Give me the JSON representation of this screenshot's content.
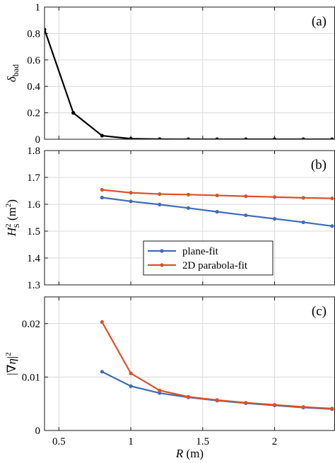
{
  "x_axis": {
    "label": "R (m)",
    "range": [
      0.4,
      2.42
    ],
    "ticks": [
      0.5,
      1,
      1.5,
      2
    ],
    "tick_labels": [
      "0.5",
      "1",
      "1.5",
      "2"
    ]
  },
  "chart_data": [
    {
      "type": "line",
      "panel_label": "(a)",
      "ylabel": "δbad",
      "ylabel_html": {
        "main": "δ",
        "sub": "bad"
      },
      "ylim": [
        0,
        1
      ],
      "yticks": [
        0,
        0.2,
        0.4,
        0.6,
        0.8,
        1
      ],
      "ytick_labels": [
        "0",
        "0.2",
        "0.4",
        "0.6",
        "0.8",
        "1"
      ],
      "grid": true,
      "series": [
        {
          "color": "#000000",
          "x": [
            0.4,
            0.6,
            0.8,
            1.0,
            1.2,
            1.4,
            1.6,
            1.8,
            2.0,
            2.2,
            2.4
          ],
          "y": [
            0.83,
            0.2,
            0.027,
            0.004,
            0.001,
            0.0,
            0.0,
            0.0,
            0.0,
            0.0,
            0.0
          ]
        }
      ]
    },
    {
      "type": "line",
      "panel_label": "(b)",
      "ylabel": "HS2 (m2)",
      "ylim": [
        1.3,
        1.8
      ],
      "yticks": [
        1.3,
        1.4,
        1.5,
        1.6,
        1.7,
        1.8
      ],
      "ytick_labels": [
        "1.3",
        "1.4",
        "1.5",
        "1.6",
        "1.7",
        "1.8"
      ],
      "grid": true,
      "legend": "bottom-center",
      "series": [
        {
          "name": "plane-fit",
          "color": "#3f6db5",
          "x": [
            0.8,
            1.0,
            1.2,
            1.4,
            1.6,
            1.8,
            2.0,
            2.2,
            2.4
          ],
          "y": [
            1.625,
            1.611,
            1.599,
            1.586,
            1.572,
            1.559,
            1.546,
            1.533,
            1.519
          ]
        },
        {
          "name": "2D parabola-fit",
          "color": "#d9522a",
          "x": [
            0.8,
            1.0,
            1.2,
            1.4,
            1.6,
            1.8,
            2.0,
            2.2,
            2.4
          ],
          "y": [
            1.654,
            1.643,
            1.638,
            1.636,
            1.633,
            1.63,
            1.627,
            1.624,
            1.622
          ]
        }
      ]
    },
    {
      "type": "line",
      "panel_label": "(c)",
      "ylabel": "|∇η|2",
      "ylim": [
        0,
        0.025
      ],
      "yticks": [
        0,
        0.01,
        0.02
      ],
      "ytick_labels": [
        "0",
        "0.01",
        "0.02"
      ],
      "grid": true,
      "series": [
        {
          "color": "#3f6db5",
          "x": [
            0.8,
            1.0,
            1.2,
            1.4,
            1.6,
            1.8,
            2.0,
            2.2,
            2.4
          ],
          "y": [
            0.011,
            0.0083,
            0.007,
            0.0062,
            0.0056,
            0.0051,
            0.0047,
            0.0043,
            0.004
          ]
        },
        {
          "color": "#d9522a",
          "x": [
            0.8,
            1.0,
            1.2,
            1.4,
            1.6,
            1.8,
            2.0,
            2.2,
            2.4
          ],
          "y": [
            0.0203,
            0.0107,
            0.0075,
            0.0063,
            0.0057,
            0.0052,
            0.0048,
            0.0044,
            0.0041
          ]
        }
      ]
    }
  ]
}
